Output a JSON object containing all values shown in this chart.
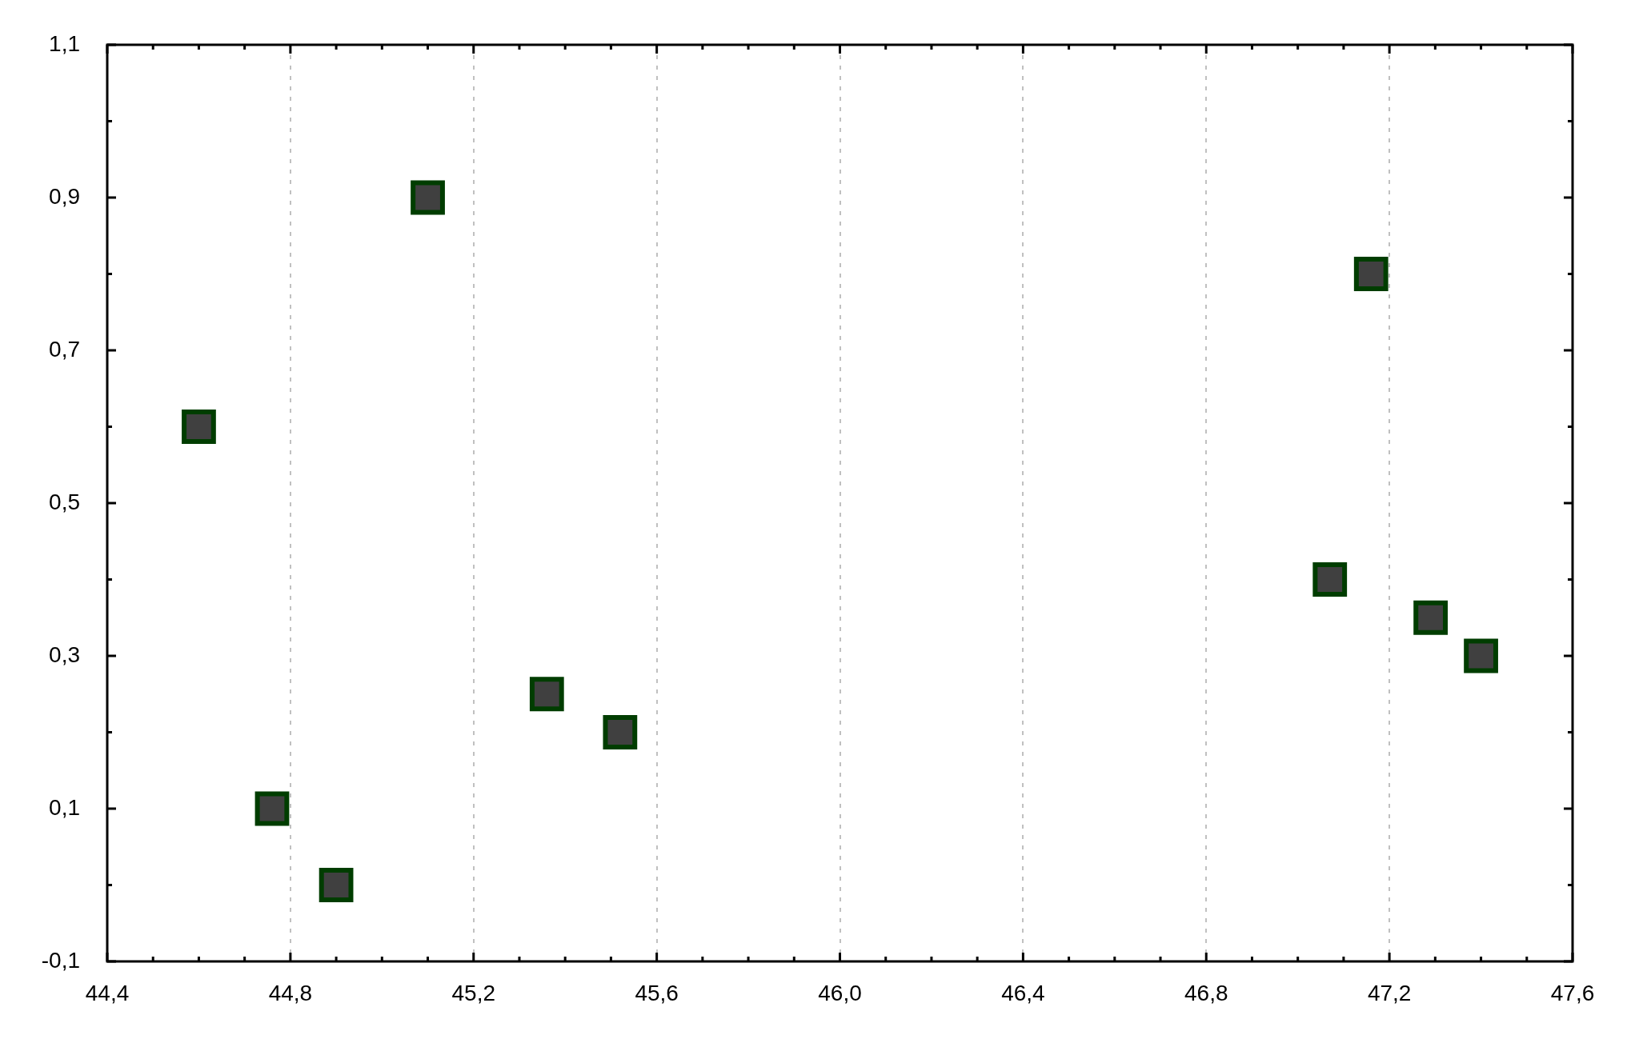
{
  "chart_data": {
    "type": "scatter",
    "x": [
      44.6,
      44.76,
      44.9,
      45.1,
      45.36,
      45.52,
      47.07,
      47.16,
      47.29,
      47.4
    ],
    "values": [
      0.6,
      0.1,
      0.0,
      0.9,
      0.25,
      0.2,
      0.4,
      0.8,
      0.35,
      0.3
    ],
    "color": "#404040",
    "marker": "square",
    "xlim": [
      44.4,
      47.6
    ],
    "ylim": [
      -0.1,
      1.1
    ],
    "xticks": [
      {
        "value": 44.4,
        "label": "44,4"
      },
      {
        "value": 44.5,
        "label": null
      },
      {
        "value": 44.6,
        "label": null
      },
      {
        "value": 44.7,
        "label": null
      },
      {
        "value": 44.8,
        "label": "44,8"
      },
      {
        "value": 44.9,
        "label": null
      },
      {
        "value": 45.0,
        "label": null
      },
      {
        "value": 45.1,
        "label": null
      },
      {
        "value": 45.2,
        "label": "45,2"
      },
      {
        "value": 45.3,
        "label": null
      },
      {
        "value": 45.4,
        "label": null
      },
      {
        "value": 45.5,
        "label": null
      },
      {
        "value": 45.6,
        "label": "45,6"
      },
      {
        "value": 45.7,
        "label": null
      },
      {
        "value": 45.8,
        "label": null
      },
      {
        "value": 45.9,
        "label": null
      },
      {
        "value": 46.0,
        "label": "46,0"
      },
      {
        "value": 46.1,
        "label": null
      },
      {
        "value": 46.2,
        "label": null
      },
      {
        "value": 46.3,
        "label": null
      },
      {
        "value": 46.4,
        "label": "46,4"
      },
      {
        "value": 46.5,
        "label": null
      },
      {
        "value": 46.6,
        "label": null
      },
      {
        "value": 46.7,
        "label": null
      },
      {
        "value": 46.8,
        "label": "46,8"
      },
      {
        "value": 46.9,
        "label": null
      },
      {
        "value": 47.0,
        "label": null
      },
      {
        "value": 47.1,
        "label": null
      },
      {
        "value": 47.2,
        "label": "47,2"
      },
      {
        "value": 47.3,
        "label": null
      },
      {
        "value": 47.4,
        "label": null
      },
      {
        "value": 47.5,
        "label": null
      },
      {
        "value": 47.6,
        "label": "47,6"
      }
    ],
    "yticks": [
      {
        "value": -0.1,
        "label": "-0,1"
      },
      {
        "value": 0.0,
        "label": null
      },
      {
        "value": 0.1,
        "label": "0,1"
      },
      {
        "value": 0.2,
        "label": null
      },
      {
        "value": 0.3,
        "label": "0,3"
      },
      {
        "value": 0.4,
        "label": null
      },
      {
        "value": 0.5,
        "label": "0,5"
      },
      {
        "value": 0.6,
        "label": null
      },
      {
        "value": 0.7,
        "label": "0,7"
      },
      {
        "value": 0.8,
        "label": null
      },
      {
        "value": 0.9,
        "label": "0,9"
      },
      {
        "value": 1.0,
        "label": null
      },
      {
        "value": 1.1,
        "label": "1,1"
      }
    ],
    "grid": "x"
  }
}
